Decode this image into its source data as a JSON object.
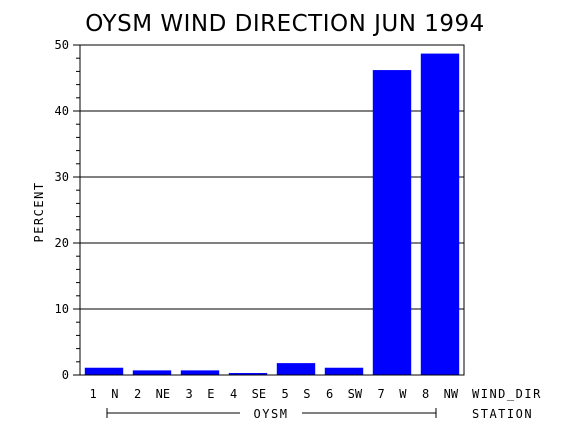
{
  "chart_data": {
    "type": "bar",
    "title": "OYSM WIND DIRECTION JUN 1994",
    "ylabel": "PERCENT",
    "xlabel": "WIND_DIR",
    "group_axis_label": "STATION",
    "group_label": "OYSM",
    "categories": [
      "1 N",
      "2 NE",
      "3 E",
      "4 SE",
      "5 S",
      "6 SW",
      "7 W",
      "8 NW"
    ],
    "values": [
      1.1,
      0.7,
      0.7,
      0.3,
      1.8,
      1.1,
      46.2,
      48.7
    ],
    "ylim": [
      0,
      50
    ],
    "yticks": [
      "0",
      "10",
      "20",
      "30",
      "40",
      "50"
    ],
    "grid": true,
    "bar_color": "#0000ff"
  }
}
